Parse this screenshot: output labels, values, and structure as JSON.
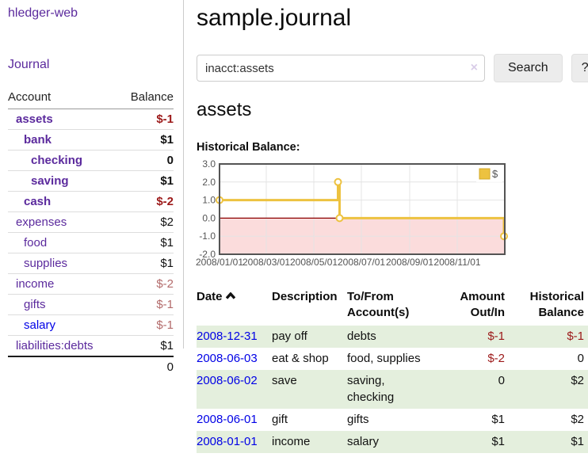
{
  "colors": {
    "purple": "#5b2a9d",
    "blue": "#0000e6",
    "neg_strong": "#9c1919",
    "neg_muted": "#b36b6b",
    "stripe": "#e4efdd",
    "clear_icon": "#d9cde8"
  },
  "sidebar": {
    "brand": "hledger-web",
    "journal_link": "Journal",
    "header": {
      "account": "Account",
      "balance": "Balance"
    },
    "accounts": [
      {
        "name": "assets",
        "balance": "$-1",
        "depth": 1,
        "bold": true
      },
      {
        "name": "bank",
        "balance": "$1",
        "depth": 2,
        "bold": true
      },
      {
        "name": "checking",
        "balance": "0",
        "depth": 3,
        "bold": true
      },
      {
        "name": "saving",
        "balance": "$1",
        "depth": 3,
        "bold": true
      },
      {
        "name": "cash",
        "balance": "$-2",
        "depth": 2,
        "bold": true
      },
      {
        "name": "expenses",
        "balance": "$2",
        "depth": 1,
        "bold": false
      },
      {
        "name": "food",
        "balance": "$1",
        "depth": 2,
        "bold": false
      },
      {
        "name": "supplies",
        "balance": "$1",
        "depth": 2,
        "bold": false
      },
      {
        "name": "income",
        "balance": "$-2",
        "depth": 1,
        "bold": false
      },
      {
        "name": "gifts",
        "balance": "$-1",
        "depth": 2,
        "bold": false
      },
      {
        "name": "salary",
        "balance": "$-1",
        "depth": 2,
        "bold": false,
        "link_color": "blue"
      },
      {
        "name": "liabilities:debts",
        "balance": "$1",
        "depth": 1,
        "bold": false
      }
    ],
    "total": "0"
  },
  "main": {
    "title": "sample.journal",
    "search": {
      "value": "inacct:assets",
      "clear_icon": "×",
      "button_label": "Search",
      "help_label": "?"
    },
    "account_heading": "assets"
  },
  "chart_data": {
    "type": "line",
    "step": true,
    "title": "Historical Balance:",
    "series": [
      {
        "name": "$",
        "points": [
          [
            "2008-01-01",
            1
          ],
          [
            "2008-06-01",
            2
          ],
          [
            "2008-06-03",
            0
          ],
          [
            "2008-12-31",
            -1
          ]
        ]
      }
    ],
    "x_ticks": [
      "2008/01/01",
      "2008/03/01",
      "2008/05/01",
      "2008/07/01",
      "2008/09/01",
      "2008/11/01"
    ],
    "y_ticks": [
      3.0,
      2.0,
      1.0,
      0.0,
      -1.0,
      -2.0
    ],
    "ylim": [
      -2,
      3
    ],
    "xlim": [
      "2008-01-01",
      "2009-01-01"
    ],
    "legend_position": "top-right",
    "grid": true,
    "negative_region_shaded": true,
    "colors": {
      "line": "#edc240",
      "marker_fill": "#ffffff",
      "grid": "#e4e4e4",
      "border": "#545454",
      "zero_line": "#8b0000",
      "below_zero_fill": "#fbdcdc",
      "tick_text": "#545454",
      "legend_swatch_border": "#d3a927"
    }
  },
  "register": {
    "headers": [
      "Date",
      "Description",
      "To/From Account(s)",
      "Amount Out/In",
      "Historical Balance"
    ],
    "rows": [
      {
        "date": "2008-12-31",
        "description": "pay off",
        "accounts": "debts",
        "amount": "$-1",
        "balance": "$-1"
      },
      {
        "date": "2008-06-03",
        "description": "eat & shop",
        "accounts": "food, supplies",
        "amount": "$-2",
        "balance": "0"
      },
      {
        "date": "2008-06-02",
        "description": "save",
        "accounts": "saving, checking",
        "amount": "0",
        "balance": "$2"
      },
      {
        "date": "2008-06-01",
        "description": "gift",
        "accounts": "gifts",
        "amount": "$1",
        "balance": "$2"
      },
      {
        "date": "2008-01-01",
        "description": "income",
        "accounts": "salary",
        "amount": "$1",
        "balance": "$1"
      }
    ]
  }
}
